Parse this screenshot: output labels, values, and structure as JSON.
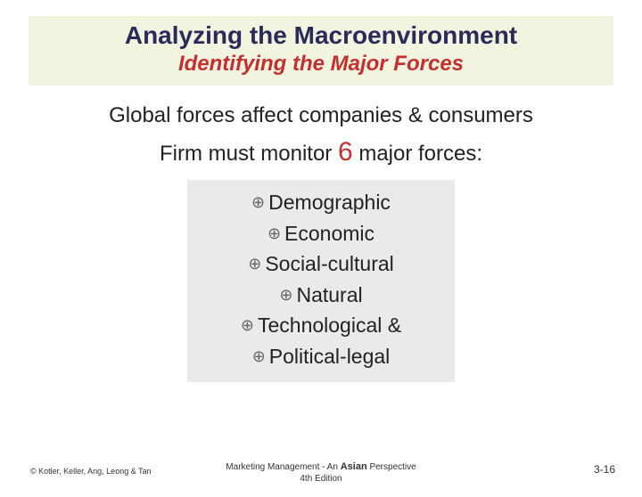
{
  "title": {
    "main": "Analyzing the Macroenvironment",
    "sub": "Identifying the Major Forces"
  },
  "body": {
    "line1": "Global forces affect companies & consumers",
    "line2_pre": "Firm must monitor ",
    "line2_num": "6",
    "line2_post": " major forces:"
  },
  "forces": [
    "Demographic",
    "Economic",
    "Social-cultural",
    "Natural",
    "Technological &",
    "Political-legal"
  ],
  "footer": {
    "copyright": "© Kotler, Keller, Ang, Leong & Tan",
    "book_line1_pre": "Marketing Management - An ",
    "book_line1_asian": "Asian",
    "book_line1_post": " Perspective",
    "book_line2": "4th Edition",
    "page": "3-16"
  },
  "colors": {
    "title_bg": "#f2f4e0",
    "title_main": "#2b2b5a",
    "title_sub": "#c23030",
    "list_bg": "#eaeaea",
    "text": "#222222"
  }
}
